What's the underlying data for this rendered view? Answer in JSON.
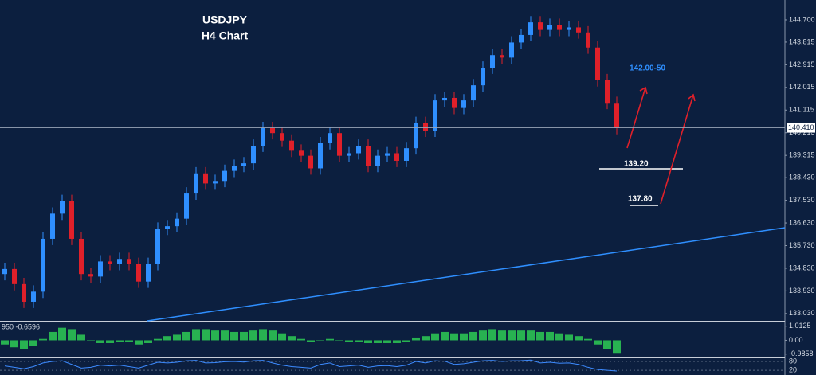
{
  "chart_data": {
    "type": "candlestick",
    "title": "USDJPY",
    "subtitle": "H4 Chart",
    "colors": {
      "up": "#2f8fff",
      "down": "#e0202a"
    },
    "open": [
      134.6,
      134.8,
      134.2,
      133.5,
      133.9,
      136.0,
      137.0,
      137.5,
      136.0,
      134.6,
      134.5,
      135.1,
      135.0,
      135.2,
      135.0,
      134.3,
      135.0,
      136.4,
      136.5,
      136.8,
      137.8,
      138.6,
      138.2,
      138.3,
      138.7,
      138.9,
      139.0,
      139.7,
      140.4,
      140.2,
      139.9,
      139.5,
      139.3,
      138.8,
      139.8,
      140.2,
      139.3,
      139.4,
      139.7,
      138.9,
      139.3,
      139.4,
      139.1,
      139.6,
      140.6,
      140.3,
      141.5,
      141.6,
      141.2,
      141.5,
      142.1,
      142.8,
      143.3,
      143.2,
      143.8,
      144.1,
      144.6,
      144.3,
      144.5,
      144.3,
      144.4,
      144.2,
      143.6,
      142.3,
      141.4
    ],
    "high": [
      135.05,
      135.05,
      134.45,
      134.15,
      136.25,
      137.25,
      137.75,
      137.75,
      136.25,
      134.85,
      135.35,
      135.35,
      135.45,
      135.45,
      135.25,
      135.25,
      136.65,
      136.75,
      137.05,
      138.05,
      138.85,
      138.85,
      138.55,
      138.95,
      139.15,
      139.25,
      139.95,
      140.65,
      140.65,
      140.45,
      140.15,
      139.75,
      139.55,
      140.05,
      140.45,
      140.45,
      139.65,
      139.95,
      139.95,
      139.55,
      139.65,
      139.65,
      139.85,
      140.85,
      140.85,
      141.75,
      141.85,
      141.85,
      141.75,
      142.35,
      143.05,
      143.55,
      143.55,
      144.05,
      144.35,
      144.85,
      144.85,
      144.75,
      144.75,
      144.65,
      144.65,
      144.45,
      143.85,
      142.55,
      141.65
    ],
    "low": [
      134.35,
      133.95,
      133.25,
      133.25,
      133.65,
      135.75,
      136.75,
      135.75,
      134.35,
      134.25,
      134.25,
      134.75,
      134.75,
      134.75,
      134.05,
      134.05,
      134.75,
      136.15,
      136.25,
      136.55,
      137.55,
      137.95,
      137.95,
      138.05,
      138.45,
      138.65,
      138.75,
      139.45,
      139.95,
      139.65,
      139.25,
      139.05,
      138.55,
      138.55,
      139.55,
      139.05,
      139.05,
      139.15,
      138.65,
      138.65,
      139.05,
      138.85,
      138.85,
      139.35,
      140.05,
      140.05,
      141.25,
      140.95,
      140.95,
      141.25,
      141.85,
      142.55,
      142.95,
      142.95,
      143.55,
      143.85,
      144.05,
      144.05,
      144.05,
      144.05,
      143.95,
      143.35,
      142.05,
      141.15,
      140.15
    ],
    "close": [
      134.8,
      134.2,
      133.5,
      133.9,
      136.0,
      137.0,
      137.5,
      136.0,
      134.6,
      134.5,
      135.1,
      135.0,
      135.2,
      135.0,
      134.3,
      135.0,
      136.4,
      136.5,
      136.8,
      137.8,
      138.6,
      138.2,
      138.3,
      138.7,
      138.9,
      139.0,
      139.7,
      140.4,
      140.2,
      139.9,
      139.5,
      139.3,
      138.8,
      139.8,
      140.2,
      139.3,
      139.4,
      139.7,
      138.9,
      139.3,
      139.4,
      139.1,
      139.6,
      140.6,
      140.3,
      141.5,
      141.6,
      141.2,
      141.5,
      142.1,
      142.8,
      143.3,
      143.2,
      143.8,
      144.1,
      144.6,
      144.3,
      144.5,
      144.3,
      144.4,
      144.2,
      143.6,
      142.3,
      141.4,
      140.4
    ],
    "ylim": [
      132.74,
      145.49
    ],
    "yticks": [
      {
        "value": 144.7,
        "label": "144.700"
      },
      {
        "value": 143.815,
        "label": "143.815"
      },
      {
        "value": 142.915,
        "label": "142.915"
      },
      {
        "value": 142.015,
        "label": "142.015"
      },
      {
        "value": 141.115,
        "label": "141.115"
      },
      {
        "value": 140.215,
        "label": "140.215"
      },
      {
        "value": 139.315,
        "label": "139.315"
      },
      {
        "value": 138.43,
        "label": "138.430"
      },
      {
        "value": 137.53,
        "label": "137.530"
      },
      {
        "value": 136.63,
        "label": "136.630"
      },
      {
        "value": 135.73,
        "label": "135.730"
      },
      {
        "value": 134.83,
        "label": "134.830"
      },
      {
        "value": 133.93,
        "label": "133.930"
      },
      {
        "value": 133.03,
        "label": "133.030"
      }
    ],
    "current_price": {
      "value": 140.41,
      "label": "140.410"
    },
    "annotations": [
      "142.00-50",
      "139.20",
      "137.80"
    ],
    "macd": {
      "label": "950 -0.6596",
      "color": "#2ecc55",
      "values": [
        -0.3,
        -0.5,
        -0.6,
        -0.4,
        0.1,
        0.6,
        0.9,
        0.8,
        0.4,
        0.0,
        -0.2,
        -0.2,
        -0.1,
        -0.1,
        -0.3,
        -0.2,
        0.1,
        0.3,
        0.4,
        0.6,
        0.8,
        0.8,
        0.7,
        0.7,
        0.6,
        0.6,
        0.7,
        0.8,
        0.7,
        0.5,
        0.3,
        0.1,
        -0.1,
        0.0,
        0.1,
        0.0,
        -0.1,
        -0.1,
        -0.2,
        -0.2,
        -0.2,
        -0.2,
        -0.1,
        0.2,
        0.3,
        0.5,
        0.6,
        0.5,
        0.5,
        0.6,
        0.7,
        0.8,
        0.7,
        0.7,
        0.7,
        0.7,
        0.6,
        0.6,
        0.5,
        0.4,
        0.3,
        0.1,
        -0.3,
        -0.6,
        -0.9
      ],
      "ylim": [
        -1.17,
        1.28
      ],
      "yticks": [
        {
          "value": 1.0125,
          "label": "1.0125"
        },
        {
          "value": 0,
          "label": "0.00"
        },
        {
          "value": -0.9858,
          "label": "-0.9858"
        }
      ]
    },
    "oscillator": {
      "color": "#3d8bff",
      "values": [
        50,
        40,
        30,
        45,
        70,
        80,
        85,
        60,
        35,
        40,
        55,
        50,
        55,
        45,
        35,
        55,
        75,
        70,
        75,
        85,
        88,
        70,
        72,
        78,
        80,
        76,
        85,
        88,
        70,
        55,
        45,
        40,
        35,
        60,
        70,
        45,
        50,
        55,
        40,
        50,
        52,
        45,
        55,
        80,
        70,
        85,
        82,
        60,
        65,
        75,
        85,
        88,
        80,
        85,
        86,
        90,
        70,
        75,
        68,
        70,
        60,
        40,
        25,
        20,
        15
      ],
      "ylim": [
        -12,
        102
      ],
      "yticks": [
        80,
        20
      ]
    }
  }
}
